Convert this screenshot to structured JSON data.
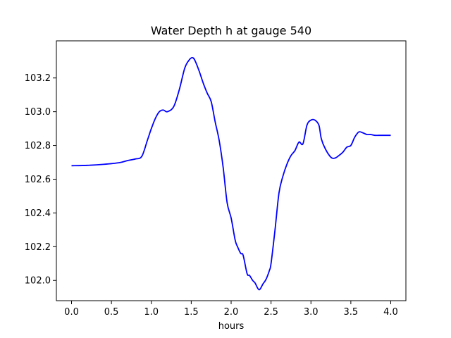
{
  "chart_data": {
    "type": "line",
    "title": "Water Depth h at gauge 540",
    "xlabel": "hours",
    "ylabel": "",
    "xlim": [
      -0.19,
      4.19
    ],
    "ylim": [
      101.88,
      103.42
    ],
    "x_ticks": [
      0.0,
      0.5,
      1.0,
      1.5,
      2.0,
      2.5,
      3.0,
      3.5,
      4.0
    ],
    "x_tick_labels": [
      "0.0",
      "0.5",
      "1.0",
      "1.5",
      "2.0",
      "2.5",
      "3.0",
      "3.5",
      "4.0"
    ],
    "y_ticks": [
      102.0,
      102.2,
      102.4,
      102.6,
      102.8,
      103.0,
      103.2
    ],
    "y_tick_labels": [
      "102.0",
      "102.2",
      "102.4",
      "102.6",
      "102.8",
      "103.0",
      "103.2"
    ],
    "grid": false,
    "series": [
      {
        "color": "#0000ff",
        "x": [
          0.0,
          0.2,
          0.4,
          0.6,
          0.7,
          0.8,
          0.88,
          0.95,
          1.0,
          1.05,
          1.1,
          1.15,
          1.2,
          1.28,
          1.35,
          1.42,
          1.48,
          1.52,
          1.55,
          1.6,
          1.65,
          1.7,
          1.75,
          1.8,
          1.85,
          1.9,
          1.95,
          2.0,
          2.05,
          2.08,
          2.12,
          2.15,
          2.2,
          2.23,
          2.27,
          2.3,
          2.35,
          2.4,
          2.43,
          2.45,
          2.48,
          2.5,
          2.55,
          2.6,
          2.65,
          2.7,
          2.75,
          2.8,
          2.85,
          2.9,
          2.95,
          3.0,
          3.05,
          3.1,
          3.13,
          3.18,
          3.25,
          3.3,
          3.35,
          3.4,
          3.45,
          3.5,
          3.55,
          3.6,
          3.65,
          3.7,
          3.75,
          3.8,
          3.85,
          3.9,
          3.95,
          4.0
        ],
        "y": [
          102.68,
          102.682,
          102.688,
          102.698,
          102.71,
          102.72,
          102.735,
          102.83,
          102.9,
          102.96,
          103.0,
          103.01,
          103.0,
          103.03,
          103.13,
          103.26,
          103.31,
          103.32,
          103.3,
          103.24,
          103.17,
          103.11,
          103.06,
          102.94,
          102.83,
          102.67,
          102.46,
          102.37,
          102.24,
          102.2,
          102.16,
          102.15,
          102.04,
          102.03,
          102.0,
          101.985,
          101.945,
          101.98,
          102.0,
          102.02,
          102.06,
          102.1,
          102.3,
          102.52,
          102.62,
          102.69,
          102.74,
          102.77,
          102.82,
          102.81,
          102.92,
          102.95,
          102.95,
          102.92,
          102.84,
          102.78,
          102.73,
          102.725,
          102.74,
          102.76,
          102.79,
          102.8,
          102.85,
          102.88,
          102.875,
          102.865,
          102.865,
          102.86,
          102.86,
          102.86,
          102.86,
          102.86
        ]
      }
    ]
  }
}
